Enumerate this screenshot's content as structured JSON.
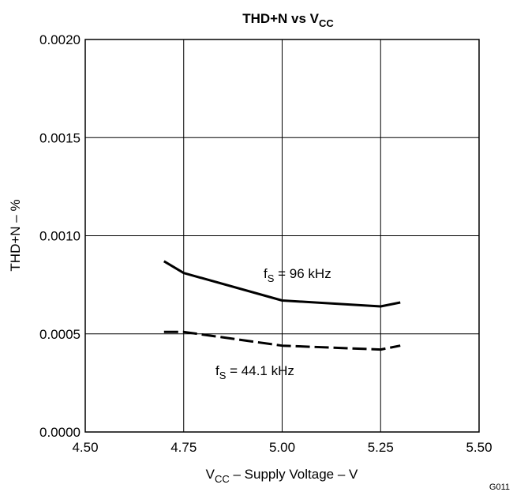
{
  "chart_data": {
    "type": "line",
    "title": {
      "main": "THD+N vs V",
      "sub": "CC"
    },
    "xlabel": {
      "pre": "V",
      "sub": "CC",
      "post": " – Supply Voltage – V"
    },
    "ylabel": "THD+N – %",
    "xlim": [
      4.5,
      5.5
    ],
    "ylim": [
      0.0,
      0.002
    ],
    "x_ticks": [
      "4.50",
      "4.75",
      "5.00",
      "5.25",
      "5.50"
    ],
    "y_ticks": [
      "0.0000",
      "0.0005",
      "0.0010",
      "0.0015",
      "0.0020"
    ],
    "grid": true,
    "series": [
      {
        "name": {
          "pre": "f",
          "sub": "S",
          "post": " = 96 kHz"
        },
        "style": "solid",
        "x": [
          4.7,
          4.75,
          5.0,
          5.25,
          5.3
        ],
        "y": [
          0.00087,
          0.00081,
          0.00067,
          0.00064,
          0.00066
        ]
      },
      {
        "name": {
          "pre": "f",
          "sub": "S",
          "post": " = 44.1 kHz"
        },
        "style": "dashed",
        "x": [
          4.7,
          4.75,
          5.0,
          5.25,
          5.3
        ],
        "y": [
          0.00051,
          0.00051,
          0.00044,
          0.00042,
          0.00044
        ]
      }
    ],
    "figure_id": "G011"
  }
}
